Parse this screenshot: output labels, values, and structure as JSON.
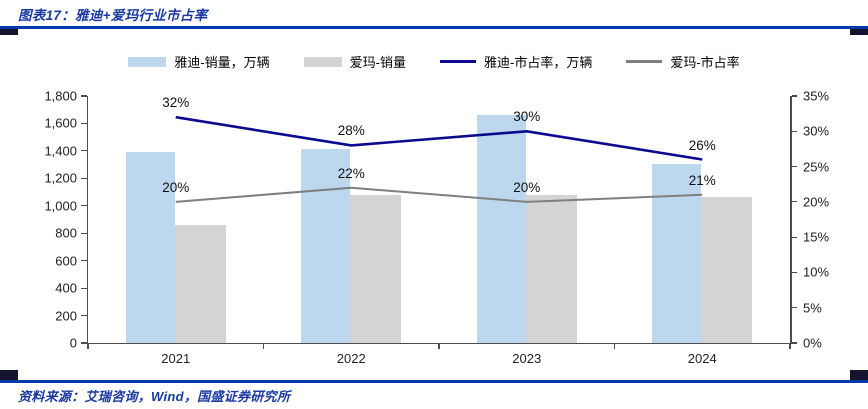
{
  "header": {
    "title": "图表17：雅迪+爱玛行业市占率"
  },
  "footer": {
    "source": "资料来源：艾瑞咨询，Wind，国盛证券研究所"
  },
  "colors": {
    "accent_blue": "#0038A8",
    "cap_dark": "#14142E",
    "title_text": "#1A3AA2",
    "yadea_bar": "#BDD7EE",
    "aima_bar": "#D4D4D4",
    "yadea_line": "#0B0B8F",
    "aima_line": "#7F7F7F",
    "axis": "#4D4D4D",
    "label_text": "#111111"
  },
  "chart_data": {
    "type": "bar+line",
    "title": "图表17：雅迪+爱玛行业市占率",
    "categories": [
      "2021",
      "2022",
      "2023",
      "2024"
    ],
    "bar_series": [
      {
        "name": "雅迪-销量，万辆",
        "color_key": "yadea_bar",
        "axis": "left",
        "values": [
          1390,
          1415,
          1660,
          1305
        ]
      },
      {
        "name": "爱玛-销量",
        "color_key": "aima_bar",
        "axis": "left",
        "values": [
          860,
          1080,
          1075,
          1065
        ]
      }
    ],
    "line_series": [
      {
        "name": "雅迪-市占率，万辆",
        "color_key": "yadea_line",
        "axis": "right",
        "values": [
          32,
          28,
          30,
          26
        ],
        "labels": [
          "32%",
          "28%",
          "30%",
          "26%"
        ]
      },
      {
        "name": "爱玛-市占率",
        "color_key": "aima_line",
        "axis": "right",
        "values": [
          20,
          22,
          20,
          21
        ],
        "labels": [
          "20%",
          "22%",
          "20%",
          "21%"
        ]
      }
    ],
    "left_axis": {
      "min": 0,
      "max": 1800,
      "tick_values": [
        0,
        200,
        400,
        600,
        800,
        1000,
        1200,
        1400,
        1600,
        1800
      ],
      "tick_labels": [
        "0",
        "200",
        "400",
        "600",
        "800",
        "1,000",
        "1,200",
        "1,400",
        "1,600",
        "1,800"
      ]
    },
    "right_axis": {
      "min": 0,
      "max": 35,
      "tick_values": [
        0,
        5,
        10,
        15,
        20,
        25,
        30,
        35
      ],
      "tick_labels": [
        "0%",
        "5%",
        "10%",
        "15%",
        "20%",
        "25%",
        "30%",
        "35%"
      ]
    },
    "legend_position": "top-center",
    "grid": false
  }
}
